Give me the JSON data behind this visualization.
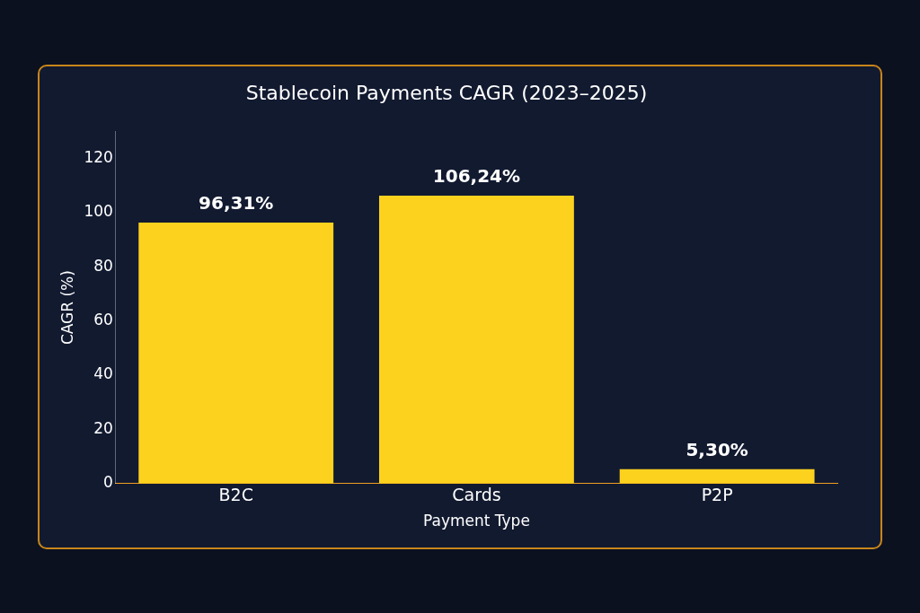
{
  "chart_data": {
    "type": "bar",
    "title": "Stablecoin Payments CAGR (2023–2025)",
    "xlabel": "Payment Type",
    "ylabel": "CAGR (%)",
    "categories": [
      "B2C",
      "Cards",
      "P2P"
    ],
    "values": [
      96.31,
      106.24,
      5.3
    ],
    "value_labels": [
      "96,31%",
      "106,24%",
      "5,30%"
    ],
    "color": "#fcd21e",
    "ylim": [
      0,
      130
    ],
    "yticks": [
      0,
      20,
      40,
      60,
      80,
      100,
      120
    ],
    "grid": false,
    "legend": false
  }
}
